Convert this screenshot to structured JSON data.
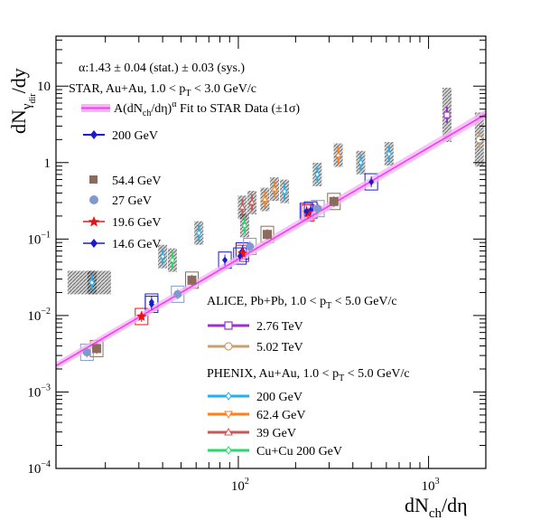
{
  "chart_data": {
    "type": "scatter",
    "x_scale": "log",
    "y_scale": "log",
    "xlim": [
      11,
      2000
    ],
    "ylim": [
      0.0001,
      45
    ],
    "grid": false,
    "legend_position": "left",
    "xlabel": {
      "main": "dN",
      "sub": "ch",
      "tail": "/dη"
    },
    "ylabel": {
      "main": "dN",
      "sub": "γ",
      "subsub": "dir",
      "tail": "/dy"
    },
    "x_ticks": [
      {
        "value": 100,
        "base": "10",
        "exp": "2"
      },
      {
        "value": 1000,
        "base": "10",
        "exp": "3"
      }
    ],
    "y_ticks": [
      {
        "value": 0.0001,
        "label": "10",
        "exp": "−4"
      },
      {
        "value": 0.001,
        "label": "10",
        "exp": "−3"
      },
      {
        "value": 0.01,
        "label": "10",
        "exp": "−2"
      },
      {
        "value": 0.1,
        "label": "10",
        "exp": "−1"
      },
      {
        "value": 1,
        "label": "1",
        "exp": ""
      },
      {
        "value": 10,
        "label": "10",
        "exp": ""
      }
    ],
    "annotations": {
      "alpha": "α:1.43 ± 0.04 (stat.) ± 0.03 (sys.)",
      "star": {
        "pre": "STAR, Au+Au, 1.0 < p",
        "sub": "T",
        "post": " < 3.0 GeV/c"
      },
      "alice": {
        "pre": "ALICE, Pb+Pb, 1.0 < p",
        "sub": "T",
        "post": " < 5.0 GeV/c"
      },
      "phenix": {
        "pre": "PHENIX, Au+Au, 1.0 < p",
        "sub": "T",
        "post": " < 5.0 GeV/c"
      }
    },
    "fit": {
      "label": {
        "a": "A(dN",
        "sub": "ch",
        "b": "/dη)",
        "sup": "α",
        "c": " Fit to STAR Data (±1σ)"
      },
      "color": "#ff33ff",
      "band_color": "#f4b8f4",
      "points": [
        [
          11,
          0.0022
        ],
        [
          2000,
          4.3
        ]
      ]
    },
    "series": [
      {
        "name": "200 GeV",
        "group": "STAR",
        "color": "#1a1ad0",
        "marker": "diamond",
        "points": [
          [
            35,
            0.015
          ],
          [
            85,
            0.053
          ],
          [
            105,
            0.07
          ],
          [
            240,
            0.24
          ],
          [
            500,
            0.56
          ]
        ]
      },
      {
        "name": "54.4 GeV",
        "group": "STAR",
        "color": "#8b6c5c",
        "marker": "square",
        "points": [
          [
            18,
            0.0037
          ],
          [
            57,
            0.029
          ],
          [
            142,
            0.115
          ],
          [
            318,
            0.31
          ]
        ]
      },
      {
        "name": "27 GeV",
        "group": "STAR",
        "color": "#7f99cc",
        "marker": "circle",
        "points": [
          [
            16,
            0.0033
          ],
          [
            48,
            0.019
          ],
          [
            115,
            0.08
          ],
          [
            262,
            0.25
          ]
        ]
      },
      {
        "name": "19.6 GeV",
        "group": "STAR",
        "color": "#ee1111",
        "marker": "star",
        "points": [
          [
            31,
            0.0097
          ],
          [
            105,
            0.065
          ],
          [
            232,
            0.22
          ]
        ]
      },
      {
        "name": "14.6 GeV",
        "group": "STAR",
        "color": "#1a1ad0",
        "marker": "diamond",
        "points": [
          [
            35,
            0.014
          ],
          [
            102,
            0.06
          ],
          [
            228,
            0.23
          ]
        ]
      },
      {
        "name": "2.76 TeV",
        "group": "ALICE",
        "color": "#9933cc",
        "marker": "open-square",
        "points": [
          [
            1250,
            4.2
          ]
        ]
      },
      {
        "name": "5.02 TeV",
        "group": "ALICE",
        "color": "#c8a070",
        "marker": "open-circle",
        "points": [
          [
            1850,
            2.0
          ]
        ]
      },
      {
        "name": "200 GeV",
        "group": "PHENIX",
        "color": "#22b0ee",
        "marker": "open-diamond",
        "points": [
          [
            17,
            0.027
          ],
          [
            40,
            0.059
          ],
          [
            62,
            0.12
          ],
          [
            175,
            0.42
          ],
          [
            260,
            0.7
          ],
          [
            440,
            1.0
          ],
          [
            620,
            1.3
          ]
        ]
      },
      {
        "name": "62.4 GeV",
        "group": "PHENIX",
        "color": "#ff7f1a",
        "marker": "open-triangle",
        "points": [
          [
            138,
            0.33
          ],
          [
            155,
            0.45
          ],
          [
            335,
            1.25
          ]
        ]
      },
      {
        "name": "39 GeV",
        "group": "PHENIX",
        "color": "#cc5555",
        "marker": "open-triangle",
        "points": [
          [
            105,
            0.26
          ],
          [
            118,
            0.3
          ]
        ]
      },
      {
        "name": "Cu+Cu  200 GeV",
        "group": "PHENIX",
        "color": "#22dd66",
        "marker": "open-diamond",
        "points": [
          [
            45,
            0.053
          ],
          [
            108,
            0.15
          ]
        ]
      }
    ]
  }
}
